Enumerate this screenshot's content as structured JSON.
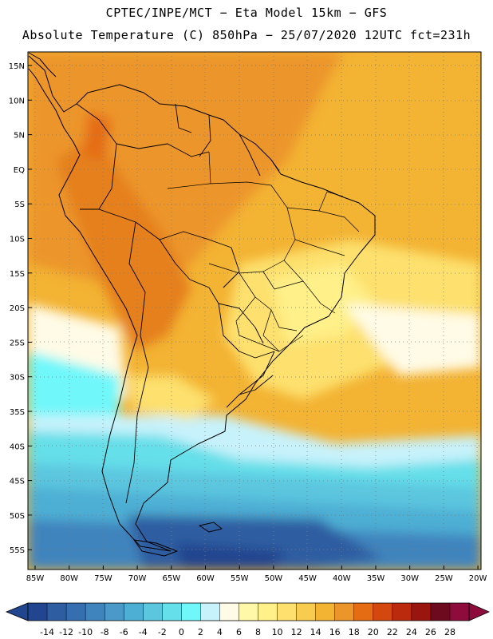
{
  "header": {
    "line1": "CPTEC/INPE/MCT −  Eta Model 15km − GFS",
    "line2": "Absolute Temperature (C) 850hPa − 25/07/2020 12UTC fct=231h"
  },
  "map": {
    "lat_labels": [
      "15N",
      "10N",
      "5N",
      "EQ",
      "5S",
      "10S",
      "15S",
      "20S",
      "25S",
      "30S",
      "35S",
      "40S",
      "45S",
      "50S",
      "55S"
    ],
    "lon_labels": [
      "85W",
      "80W",
      "75W",
      "70W",
      "65W",
      "60W",
      "55W",
      "50W",
      "45W",
      "40W",
      "35W",
      "30W",
      "25W",
      "20W"
    ],
    "gridlines": true,
    "gridline_style": "dotted"
  },
  "colorbar": {
    "labels": [
      "-14",
      "-12",
      "-10",
      "-8",
      "-6",
      "-4",
      "-2",
      "0",
      "2",
      "4",
      "6",
      "8",
      "10",
      "12",
      "14",
      "16",
      "18",
      "20",
      "22",
      "24",
      "26",
      "28"
    ],
    "colors": [
      "#21458f",
      "#2e5da1",
      "#356fb0",
      "#3f84bd",
      "#4a99c8",
      "#4dafd4",
      "#5cc6df",
      "#65dfe9",
      "#6ff7fa",
      "#c8f2fb",
      "#fffbe6",
      "#fff8a8",
      "#fff089",
      "#fde06d",
      "#f8cd4f",
      "#f3b333",
      "#ec952a",
      "#e56c12",
      "#d4470e",
      "#bc2a0e",
      "#9b150f",
      "#6e0a1d",
      "#8e0c3b"
    ],
    "under_color": "#21458f",
    "over_color": "#8e0c3b"
  }
}
